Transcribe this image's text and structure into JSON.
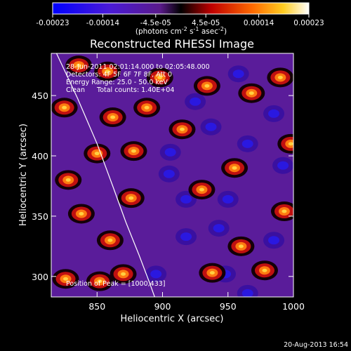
{
  "chart_data": {
    "type": "heatmap",
    "title": "Reconstructed RHESSI Image",
    "xlabel": "Heliocentric X (arcsec)",
    "ylabel": "Heliocentric Y (arcsec)",
    "xlim": [
      815,
      1000
    ],
    "ylim": [
      283,
      485
    ],
    "x_ticks": [
      850,
      900,
      950,
      1000
    ],
    "y_ticks": [
      300,
      350,
      400,
      450
    ],
    "colorbar": {
      "range": [
        -0.00023,
        0.00023
      ],
      "tick_values": [
        -0.00023,
        -0.00014,
        -4.5e-05,
        4.5e-05,
        0.00014,
        0.00023
      ],
      "tick_labels": [
        "-0.00023",
        "-0.00014",
        "-4.5e-05",
        "4.5e-05",
        "0.00014",
        "0.00023"
      ],
      "unit_prefix": "(photons cm",
      "unit_exp1": "-2",
      "unit_mid": " s",
      "unit_exp2": "-1",
      "unit_mid2": " asec",
      "unit_exp3": "-2",
      "unit_suffix": ")"
    },
    "annotations": {
      "time_range": "28-Jun-2011 02:01:14.000 to 02:05:48.000",
      "detectors": "Detectors: 4F 5F 6F 7F 8F, Att 0",
      "energy": "Energy Range: 25.0 - 50.0 keV",
      "method": "Clean",
      "counts": "Total counts: 1.40E+04",
      "peak": "Position of Peak = [1000,433]"
    },
    "limb_curve": [
      [
        819,
        485
      ],
      [
        835,
        448
      ],
      [
        850,
        410
      ],
      [
        862,
        375
      ],
      [
        872,
        345
      ],
      [
        882,
        318
      ],
      [
        890,
        295
      ],
      [
        894,
        283
      ]
    ],
    "field": {
      "bright": [
        [
          836,
          475
        ],
        [
          858,
          470
        ],
        [
          898,
          465
        ],
        [
          825,
          440
        ],
        [
          862,
          432
        ],
        [
          888,
          440
        ],
        [
          934,
          458
        ],
        [
          968,
          452
        ],
        [
          990,
          465
        ],
        [
          850,
          402
        ],
        [
          828,
          380
        ],
        [
          878,
          404
        ],
        [
          838,
          352
        ],
        [
          860,
          330
        ],
        [
          876,
          365
        ],
        [
          870,
          302
        ],
        [
          826,
          298
        ],
        [
          852,
          296
        ],
        [
          930,
          372
        ],
        [
          938,
          303
        ],
        [
          978,
          305
        ],
        [
          993,
          354
        ],
        [
          960,
          325
        ],
        [
          915,
          422
        ],
        [
          998,
          410
        ],
        [
          955,
          390
        ]
      ],
      "dark": [
        [
          906,
          403
        ],
        [
          937,
          424
        ],
        [
          965,
          410
        ],
        [
          992,
          392
        ],
        [
          918,
          364
        ],
        [
          950,
          364
        ],
        [
          985,
          330
        ],
        [
          918,
          333
        ],
        [
          948,
          302
        ],
        [
          895,
          302
        ],
        [
          958,
          468
        ],
        [
          985,
          435
        ],
        [
          925,
          445
        ],
        [
          905,
          385
        ],
        [
          943,
          340
        ],
        [
          965,
          286
        ]
      ]
    },
    "generated": "20-Aug-2013 16:54"
  }
}
